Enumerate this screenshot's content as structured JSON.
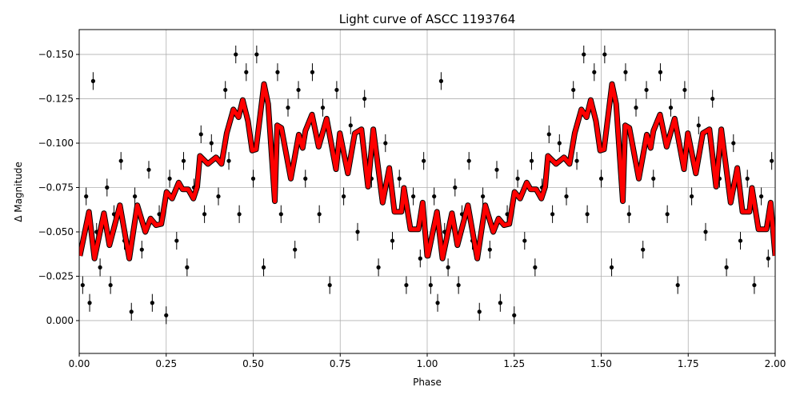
{
  "chart_data": {
    "type": "scatter",
    "title": "Light curve of ASCC 1193764",
    "xlabel": "Phase",
    "ylabel": "Δ Magnitude",
    "xlim": [
      0.0,
      2.0
    ],
    "ylim": [
      0.0185,
      -0.164
    ],
    "y_inverted": true,
    "grid": true,
    "xticks": [
      "0.00",
      "0.25",
      "0.50",
      "0.75",
      "1.00",
      "1.25",
      "1.50",
      "1.75",
      "2.00"
    ],
    "yticks": [
      "−0.150",
      "−0.125",
      "−0.100",
      "−0.075",
      "−0.050",
      "−0.025",
      "0.000"
    ],
    "ytick_values": [
      -0.15,
      -0.125,
      -0.1,
      -0.075,
      -0.05,
      -0.025,
      0.0
    ],
    "xtick_values": [
      0,
      0.25,
      0.5,
      0.75,
      1.0,
      1.25,
      1.5,
      1.75,
      2.0
    ],
    "colors": {
      "points": "#000000",
      "model": "#ff0000",
      "grid": "#b0b0b0"
    },
    "period_repeats": 2,
    "series": [
      {
        "kind": "errorbar-points",
        "color": "#000000",
        "points": [
          [
            0.01,
            -0.02,
            0.005
          ],
          [
            0.02,
            -0.07,
            0.005
          ],
          [
            0.03,
            -0.01,
            0.005
          ],
          [
            0.04,
            -0.135,
            0.005
          ],
          [
            0.05,
            -0.05,
            0.005
          ],
          [
            0.06,
            -0.03,
            0.005
          ],
          [
            0.08,
            -0.075,
            0.005
          ],
          [
            0.09,
            -0.02,
            0.005
          ],
          [
            0.1,
            -0.06,
            0.005
          ],
          [
            0.12,
            -0.09,
            0.005
          ],
          [
            0.13,
            -0.045,
            0.005
          ],
          [
            0.15,
            -0.005,
            0.005
          ],
          [
            0.16,
            -0.07,
            0.005
          ],
          [
            0.18,
            -0.04,
            0.005
          ],
          [
            0.2,
            -0.085,
            0.005
          ],
          [
            0.21,
            -0.01,
            0.005
          ],
          [
            0.23,
            -0.06,
            0.005
          ],
          [
            0.25,
            -0.003,
            0.005
          ],
          [
            0.26,
            -0.08,
            0.005
          ],
          [
            0.28,
            -0.045,
            0.005
          ],
          [
            0.3,
            -0.09,
            0.005
          ],
          [
            0.31,
            -0.03,
            0.005
          ],
          [
            0.33,
            -0.075,
            0.005
          ],
          [
            0.35,
            -0.105,
            0.005
          ],
          [
            0.36,
            -0.06,
            0.005
          ],
          [
            0.38,
            -0.1,
            0.005
          ],
          [
            0.4,
            -0.07,
            0.005
          ],
          [
            0.42,
            -0.13,
            0.005
          ],
          [
            0.43,
            -0.09,
            0.005
          ],
          [
            0.45,
            -0.15,
            0.005
          ],
          [
            0.46,
            -0.06,
            0.005
          ],
          [
            0.48,
            -0.14,
            0.005
          ],
          [
            0.5,
            -0.08,
            0.005
          ],
          [
            0.51,
            -0.15,
            0.005
          ],
          [
            0.53,
            -0.03,
            0.005
          ],
          [
            0.55,
            -0.1,
            0.005
          ],
          [
            0.57,
            -0.14,
            0.005
          ],
          [
            0.58,
            -0.06,
            0.005
          ],
          [
            0.6,
            -0.12,
            0.005
          ],
          [
            0.62,
            -0.04,
            0.005
          ],
          [
            0.63,
            -0.13,
            0.005
          ],
          [
            0.65,
            -0.08,
            0.005
          ],
          [
            0.67,
            -0.14,
            0.005
          ],
          [
            0.69,
            -0.06,
            0.005
          ],
          [
            0.7,
            -0.12,
            0.005
          ],
          [
            0.72,
            -0.02,
            0.005
          ],
          [
            0.74,
            -0.13,
            0.005
          ],
          [
            0.76,
            -0.07,
            0.005
          ],
          [
            0.78,
            -0.11,
            0.005
          ],
          [
            0.8,
            -0.05,
            0.005
          ],
          [
            0.82,
            -0.125,
            0.005
          ],
          [
            0.84,
            -0.08,
            0.005
          ],
          [
            0.86,
            -0.03,
            0.005
          ],
          [
            0.88,
            -0.1,
            0.005
          ],
          [
            0.9,
            -0.045,
            0.005
          ],
          [
            0.92,
            -0.08,
            0.005
          ],
          [
            0.94,
            -0.02,
            0.005
          ],
          [
            0.96,
            -0.07,
            0.005
          ],
          [
            0.98,
            -0.035,
            0.005
          ],
          [
            0.99,
            -0.09,
            0.005
          ]
        ]
      },
      {
        "kind": "model-line",
        "color": "#ff0000",
        "x": [
          0.002,
          0.028,
          0.044,
          0.071,
          0.087,
          0.117,
          0.144,
          0.167,
          0.19,
          0.205,
          0.221,
          0.236,
          0.251,
          0.267,
          0.286,
          0.297,
          0.313,
          0.328,
          0.339,
          0.347,
          0.37,
          0.393,
          0.409,
          0.424,
          0.443,
          0.458,
          0.47,
          0.485,
          0.497,
          0.508,
          0.531,
          0.543,
          0.562,
          0.569,
          0.581,
          0.608,
          0.631,
          0.642,
          0.65,
          0.669,
          0.688,
          0.711,
          0.738,
          0.749,
          0.772,
          0.792,
          0.811,
          0.83,
          0.845,
          0.872,
          0.891,
          0.906,
          0.926,
          0.933,
          0.952,
          0.975,
          0.987,
          1.0
        ],
        "y": [
          -0.0365,
          -0.0613,
          -0.035,
          -0.0605,
          -0.0425,
          -0.065,
          -0.035,
          -0.065,
          -0.05,
          -0.0575,
          -0.0538,
          -0.0545,
          -0.0725,
          -0.0688,
          -0.0778,
          -0.074,
          -0.074,
          -0.0688,
          -0.0755,
          -0.0928,
          -0.0883,
          -0.092,
          -0.0883,
          -0.1056,
          -0.119,
          -0.1146,
          -0.1243,
          -0.1123,
          -0.0958,
          -0.0965,
          -0.1333,
          -0.1221,
          -0.0673,
          -0.11,
          -0.1086,
          -0.08,
          -0.1048,
          -0.0973,
          -0.107,
          -0.1161,
          -0.098,
          -0.1138,
          -0.0853,
          -0.1056,
          -0.083,
          -0.1056,
          -0.1078,
          -0.0755,
          -0.1078,
          -0.0665,
          -0.086,
          -0.0613,
          -0.0613,
          -0.0748,
          -0.0515,
          -0.0515,
          -0.0665,
          -0.0365
        ]
      }
    ]
  }
}
